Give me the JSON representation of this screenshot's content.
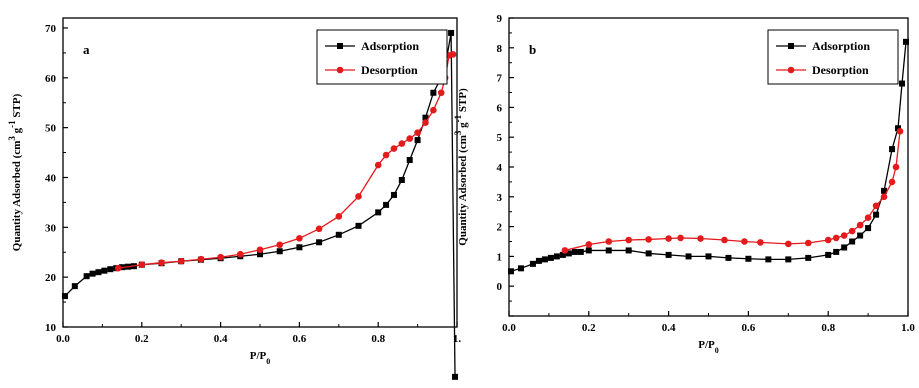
{
  "chart_data": [
    {
      "type": "line",
      "panel_label": "a",
      "xlabel": "P/P",
      "xlabel_sub": "0",
      "ylabel": "Quantity Adsorbed (cm",
      "ylabel_sup1": "3",
      "ylabel_mid": " g",
      "ylabel_sup2": "-1",
      "ylabel_end": " STP)",
      "xlim": [
        0,
        1.0
      ],
      "ylim": [
        10,
        72
      ],
      "xticks": [
        0.0,
        0.2,
        0.4,
        0.6,
        0.8,
        1.0
      ],
      "xtick_labels": [
        "0.0",
        "0.2",
        "0.4",
        "0.6",
        "0.8",
        "1."
      ],
      "yticks": [
        10,
        20,
        30,
        40,
        50,
        60,
        70
      ],
      "ytick_labels": [
        "10",
        "20",
        "30",
        "40",
        "50",
        "60",
        "70"
      ],
      "legend_position": "top-right",
      "series": [
        {
          "name": "Adsorption",
          "color": "#000000",
          "marker": "square",
          "x": [
            0.005,
            0.03,
            0.06,
            0.075,
            0.09,
            0.105,
            0.12,
            0.135,
            0.15,
            0.165,
            0.18,
            0.2,
            0.25,
            0.3,
            0.35,
            0.4,
            0.45,
            0.5,
            0.55,
            0.6,
            0.65,
            0.7,
            0.75,
            0.8,
            0.82,
            0.84,
            0.86,
            0.88,
            0.9,
            0.92,
            0.94,
            0.96,
            0.975,
            0.985,
            0.995
          ],
          "y": [
            16.2,
            18.2,
            20.2,
            20.7,
            21.0,
            21.3,
            21.6,
            21.8,
            22.0,
            22.1,
            22.2,
            22.5,
            22.8,
            23.2,
            23.5,
            23.8,
            24.2,
            24.6,
            25.2,
            26.0,
            27.0,
            28.5,
            30.3,
            33.0,
            34.5,
            36.5,
            39.5,
            43.5,
            47.5,
            52.0,
            57.0,
            60.0,
            64.5,
            69.0,
            0
          ]
        },
        {
          "name": "Desorption",
          "color": "#e41a1c",
          "marker": "circle",
          "x": [
            0.14,
            0.2,
            0.25,
            0.3,
            0.35,
            0.4,
            0.45,
            0.5,
            0.55,
            0.6,
            0.65,
            0.7,
            0.75,
            0.8,
            0.82,
            0.84,
            0.86,
            0.88,
            0.9,
            0.92,
            0.94,
            0.96,
            0.97,
            0.98,
            0.99
          ],
          "y": [
            21.8,
            22.5,
            22.9,
            23.2,
            23.6,
            24.0,
            24.6,
            25.5,
            26.5,
            27.8,
            29.7,
            32.2,
            36.2,
            42.5,
            44.5,
            45.8,
            46.8,
            47.8,
            49.0,
            51.0,
            53.5,
            57.0,
            60.0,
            64.5,
            64.7
          ]
        }
      ]
    },
    {
      "type": "line",
      "panel_label": "b",
      "xlabel": "P/P",
      "xlabel_sub": "0",
      "ylabel": "Quantity Adsorbed (cm",
      "ylabel_sup1": "3",
      "ylabel_mid": " g",
      "ylabel_sup2": "-1",
      "ylabel_end": " STP)",
      "xlim": [
        0,
        1.0
      ],
      "ylim": [
        -1,
        9
      ],
      "xticks": [
        0.0,
        0.2,
        0.4,
        0.6,
        0.8,
        1.0
      ],
      "xtick_labels": [
        "0.0",
        "0.2",
        "0.4",
        "0.6",
        "0.8",
        "1.0"
      ],
      "yticks": [
        -1,
        0,
        1,
        2,
        3,
        4,
        5,
        6,
        7,
        8,
        9
      ],
      "ytick_labels": [
        "",
        "0",
        "1",
        "2",
        "3",
        "4",
        "5",
        "6",
        "7",
        "8",
        "9"
      ],
      "legend_position": "top-right",
      "series": [
        {
          "name": "Adsorption",
          "color": "#000000",
          "marker": "square",
          "x": [
            0.005,
            0.03,
            0.06,
            0.075,
            0.09,
            0.105,
            0.12,
            0.135,
            0.15,
            0.165,
            0.18,
            0.2,
            0.25,
            0.3,
            0.35,
            0.4,
            0.45,
            0.5,
            0.55,
            0.6,
            0.65,
            0.7,
            0.75,
            0.8,
            0.82,
            0.84,
            0.86,
            0.88,
            0.9,
            0.92,
            0.94,
            0.96,
            0.975,
            0.985,
            0.995
          ],
          "y": [
            0.5,
            0.6,
            0.75,
            0.85,
            0.9,
            0.95,
            1.0,
            1.05,
            1.1,
            1.15,
            1.15,
            1.2,
            1.2,
            1.2,
            1.1,
            1.05,
            1.0,
            1.0,
            0.95,
            0.92,
            0.9,
            0.9,
            0.95,
            1.05,
            1.15,
            1.3,
            1.5,
            1.7,
            1.95,
            2.4,
            3.2,
            4.6,
            5.3,
            6.8,
            8.2
          ]
        },
        {
          "name": "Desorption",
          "color": "#e41a1c",
          "marker": "circle",
          "x": [
            0.14,
            0.2,
            0.25,
            0.3,
            0.35,
            0.4,
            0.43,
            0.48,
            0.54,
            0.59,
            0.63,
            0.7,
            0.75,
            0.8,
            0.82,
            0.84,
            0.86,
            0.88,
            0.9,
            0.92,
            0.94,
            0.96,
            0.97,
            0.98
          ],
          "y": [
            1.2,
            1.4,
            1.5,
            1.55,
            1.57,
            1.6,
            1.62,
            1.6,
            1.55,
            1.5,
            1.47,
            1.42,
            1.45,
            1.55,
            1.62,
            1.7,
            1.85,
            2.05,
            2.3,
            2.7,
            3.0,
            3.5,
            4.0,
            5.2
          ]
        }
      ]
    }
  ]
}
